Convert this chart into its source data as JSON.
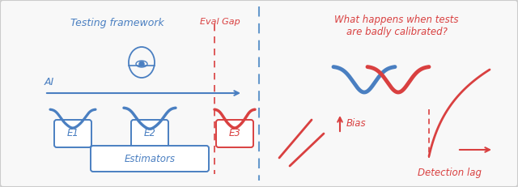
{
  "bg_color": "#f8f8f8",
  "blue": "#4a7fc1",
  "red": "#d94040",
  "divider_color": "#6699cc",
  "border_color": "#cccccc",
  "left_title": "Testing framework",
  "right_title_line1": "What happens when tests",
  "right_title_line2": "are badly calibrated?",
  "eval_gap_label": "Eval Gap",
  "ai_label": "AI",
  "estimators_label": "Estimators",
  "e1_label": "E1",
  "e2_label": "E2",
  "e3_label": "E3",
  "bias_label": "Bias",
  "detection_lag_label": "Detection lag"
}
